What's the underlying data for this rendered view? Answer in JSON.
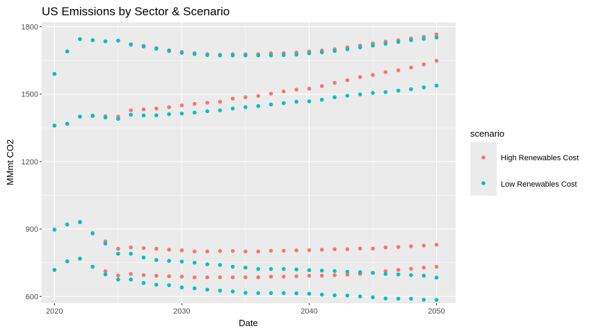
{
  "chart_data": {
    "type": "scatter",
    "title": "US Emissions by Sector & Scenario",
    "xlabel": "Date",
    "ylabel": "MMmt CO2",
    "xlim": [
      2019.0,
      2051.5
    ],
    "ylim": [
      570,
      1820
    ],
    "x_ticks": [
      2020,
      2030,
      2040,
      2050
    ],
    "x_tick_labels": [
      "2020",
      "2030",
      "2040",
      "2050"
    ],
    "y_ticks": [
      600,
      900,
      1200,
      1500,
      1800
    ],
    "y_tick_labels": [
      "600",
      "900",
      "1200",
      "1500",
      "1800"
    ],
    "grid": true,
    "legend_title": "scenario",
    "legend_position": "right",
    "years": [
      2020,
      2021,
      2022,
      2023,
      2024,
      2025,
      2026,
      2027,
      2028,
      2029,
      2030,
      2031,
      2032,
      2033,
      2034,
      2035,
      2036,
      2037,
      2038,
      2039,
      2040,
      2041,
      2042,
      2043,
      2044,
      2045,
      2046,
      2047,
      2048,
      2049,
      2050
    ],
    "series": [
      {
        "name": "High Renewables Cost",
        "color": "#F8766D",
        "groups": [
          [
            1590,
            1690,
            1745,
            1740,
            1735,
            1738,
            1722,
            1715,
            1705,
            1695,
            1688,
            1682,
            1678,
            1675,
            1678,
            1678,
            1678,
            1682,
            1682,
            1685,
            1690,
            1694,
            1700,
            1708,
            1716,
            1726,
            1734,
            1740,
            1748,
            1755,
            1766
          ],
          [
            1360,
            1368,
            1400,
            1405,
            1402,
            1400,
            1428,
            1432,
            1436,
            1442,
            1450,
            1457,
            1462,
            1466,
            1480,
            1486,
            1492,
            1502,
            1512,
            1520,
            1524,
            1536,
            1550,
            1562,
            1576,
            1585,
            1598,
            1606,
            1618,
            1632,
            1648
          ],
          [
            897,
            920,
            932,
            882,
            845,
            812,
            818,
            815,
            812,
            808,
            805,
            800,
            800,
            802,
            802,
            800,
            800,
            803,
            803,
            805,
            806,
            808,
            810,
            810,
            813,
            813,
            818,
            820,
            823,
            826,
            830
          ],
          [
            718,
            756,
            768,
            732,
            712,
            693,
            700,
            695,
            692,
            690,
            688,
            685,
            685,
            685,
            685,
            685,
            685,
            688,
            688,
            690,
            692,
            692,
            694,
            697,
            700,
            705,
            712,
            718,
            723,
            728,
            732
          ]
        ]
      },
      {
        "name": "Low Renewables Cost",
        "color": "#00BFC4",
        "groups": [
          [
            1590,
            1690,
            1745,
            1740,
            1735,
            1738,
            1720,
            1712,
            1702,
            1692,
            1684,
            1678,
            1674,
            1672,
            1672,
            1672,
            1672,
            1672,
            1674,
            1676,
            1682,
            1686,
            1692,
            1700,
            1708,
            1716,
            1724,
            1732,
            1740,
            1746,
            1752
          ],
          [
            1360,
            1368,
            1400,
            1403,
            1396,
            1390,
            1408,
            1405,
            1406,
            1411,
            1414,
            1418,
            1424,
            1428,
            1436,
            1442,
            1447,
            1454,
            1460,
            1466,
            1468,
            1475,
            1486,
            1493,
            1499,
            1505,
            1509,
            1516,
            1522,
            1530,
            1538
          ],
          [
            897,
            920,
            930,
            880,
            835,
            790,
            790,
            773,
            762,
            758,
            755,
            750,
            743,
            740,
            732,
            728,
            722,
            722,
            722,
            720,
            717,
            715,
            713,
            710,
            708,
            705,
            700,
            698,
            695,
            692,
            684
          ],
          [
            718,
            756,
            768,
            732,
            698,
            675,
            675,
            660,
            652,
            650,
            640,
            636,
            630,
            626,
            622,
            616,
            615,
            615,
            615,
            614,
            612,
            608,
            605,
            604,
            600,
            596,
            591,
            590,
            590,
            585,
            585
          ]
        ]
      }
    ]
  }
}
